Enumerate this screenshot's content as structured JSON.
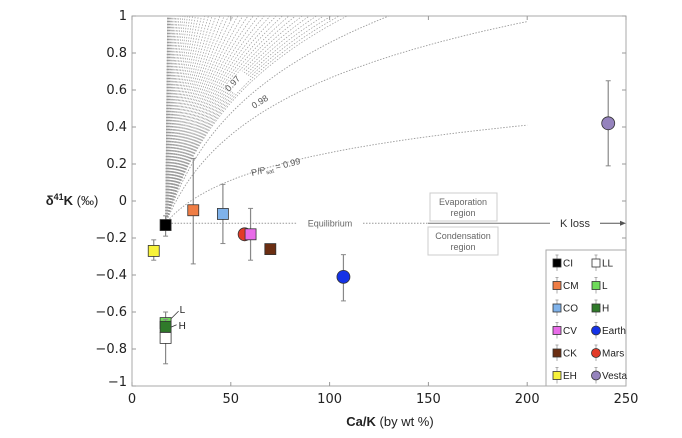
{
  "chart_data": {
    "type": "scatter",
    "title": "",
    "xlabel_bold": "Ca/K",
    "xlabel_rest": " (by wt %)",
    "ylabel_delta": "δ",
    "ylabel_sup": "41",
    "ylabel_bold": "K",
    "ylabel_rest": " (‰)",
    "xlim": [
      0,
      250
    ],
    "ylim": [
      -1,
      1
    ],
    "xticks": [
      0,
      50,
      100,
      150,
      200,
      250
    ],
    "xtick_labels": [
      "0",
      "50",
      "100",
      "150",
      "200",
      "250"
    ],
    "yticks": [
      1,
      0.8,
      0.6,
      0.4,
      0.2,
      0,
      -0.2,
      -0.4,
      -0.6,
      -0.8,
      -1
    ],
    "ytick_labels": [
      "1",
      "0.8",
      "0.6",
      "0.4",
      "0.2",
      "0",
      "−0.2",
      "−0.4",
      "−0.6",
      "−0.8",
      "−1"
    ],
    "grid": false,
    "equilibrium": {
      "y": -0.12,
      "label": "Equilibrium"
    },
    "evaporation_curves": {
      "origin": {
        "x": 17,
        "y": -0.12
      },
      "labeled": [
        {
          "ratio": 0.99,
          "label_prefix": "P/P",
          "label_sub": "sat",
          "label_suffix": " = 0.99",
          "end": {
            "x": 200,
            "y": 0.41
          }
        },
        {
          "ratio": 0.98,
          "label": "0.98",
          "end": {
            "x": 200,
            "y": 0.97
          }
        },
        {
          "ratio": 0.97,
          "label": "0.97",
          "end": {
            "x": 130,
            "y": 1.0
          }
        }
      ],
      "unlabeled_count": 50
    },
    "annotations": {
      "evaporation_box": [
        "Evaporation",
        "region"
      ],
      "condensation_box": [
        "Condensation",
        "region"
      ],
      "k_loss": "K loss",
      "l_label": "L",
      "h_label": "H"
    },
    "series": [
      {
        "name": "CI",
        "shape": "square",
        "color": "#000000",
        "x": 17,
        "y": -0.13,
        "err": [
          -0.19,
          -0.08
        ]
      },
      {
        "name": "CM",
        "shape": "square",
        "color": "#EF7D45",
        "x": 31,
        "y": -0.05,
        "err": [
          -0.34,
          0.23
        ]
      },
      {
        "name": "CO",
        "shape": "square",
        "color": "#7FB2EA",
        "x": 46,
        "y": -0.07,
        "err": [
          -0.23,
          0.09
        ]
      },
      {
        "name": "CV",
        "shape": "square",
        "color": "#E86BE8",
        "x": 60,
        "y": -0.18,
        "err": [
          -0.32,
          -0.04
        ]
      },
      {
        "name": "CK",
        "shape": "square",
        "color": "#6B2E12",
        "x": 70,
        "y": -0.26,
        "err": [
          -0.27,
          -0.25
        ]
      },
      {
        "name": "EH",
        "shape": "square",
        "color": "#F7F23A",
        "x": 11,
        "y": -0.27,
        "err": [
          -0.32,
          -0.21
        ]
      },
      {
        "name": "LL",
        "shape": "square",
        "color": "#FFFFFF",
        "x": 17,
        "y": -0.74,
        "err": [
          -0.88,
          -0.67
        ]
      },
      {
        "name": "L",
        "shape": "square",
        "color": "#6FDB5A",
        "x": 17,
        "y": -0.66,
        "err": [
          -0.69,
          -0.6
        ]
      },
      {
        "name": "H",
        "shape": "square",
        "color": "#2F7A2A",
        "x": 17,
        "y": -0.68,
        "err": [
          -0.71,
          -0.64
        ]
      },
      {
        "name": "Earth",
        "shape": "circle",
        "color": "#1432E6",
        "x": 107,
        "y": -0.41,
        "err": [
          -0.54,
          -0.29
        ]
      },
      {
        "name": "Mars",
        "shape": "circle",
        "color": "#E23A28",
        "x": 57,
        "y": -0.18,
        "err": [
          -0.19,
          -0.17
        ]
      },
      {
        "name": "Vesta",
        "shape": "circle",
        "color": "#9583BD",
        "x": 241,
        "y": 0.42,
        "err": [
          0.19,
          0.65
        ]
      }
    ],
    "legend": {
      "placement": "bottom-right",
      "columns": [
        [
          "CI",
          "CM",
          "CO",
          "CV",
          "CK",
          "EH"
        ],
        [
          "LL",
          "L",
          "H",
          "Earth",
          "Mars",
          "Vesta"
        ]
      ]
    }
  }
}
